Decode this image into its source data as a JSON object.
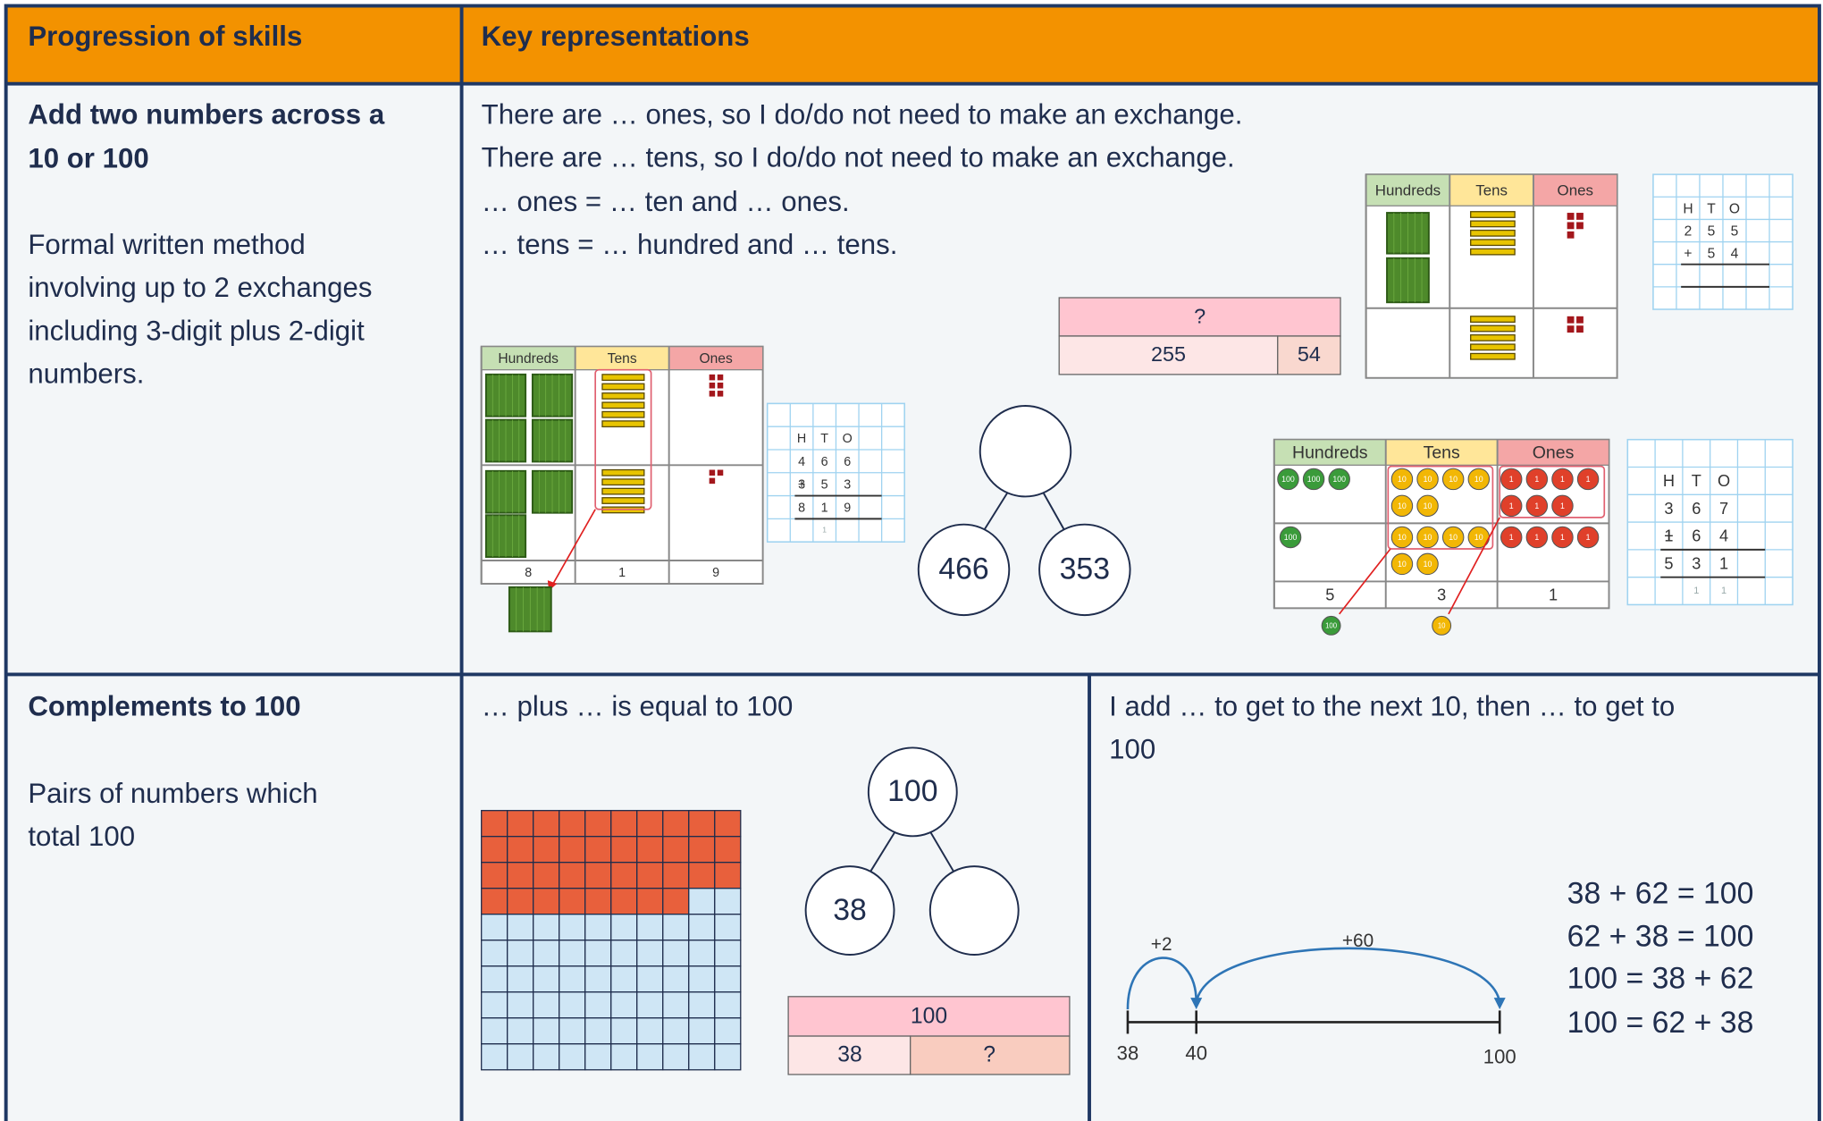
{
  "header": {
    "skills": "Progression of skills",
    "representations": "Key representations"
  },
  "row1": {
    "skill_title": [
      "Add two numbers across a",
      "10 or 100"
    ],
    "skill_description": [
      "Formal written method",
      "involving up to 2 exchanges",
      "including 3-digit plus 2-digit",
      "numbers."
    ],
    "sentences": [
      "There are … ones, so I do/do not need to make an exchange.",
      "There are … tens, so I do/do not need to make an exchange.",
      "… ones = … ten and … ones.",
      "… tens = … hundred and … tens."
    ],
    "place_value_headers": [
      "Hundreds",
      "Tens",
      "Ones"
    ],
    "chart_a_totals": [
      "8",
      "1",
      "9"
    ],
    "column_a": {
      "heading": [
        "H",
        "T",
        "O"
      ],
      "sign": "+",
      "addend1": [
        "4",
        "6",
        "6"
      ],
      "addend2": [
        "3",
        "5",
        "3"
      ],
      "answer": [
        "8",
        "1",
        "9"
      ],
      "carry": [
        "1"
      ]
    },
    "column_b": {
      "heading": [
        "H",
        "T",
        "O"
      ],
      "sign": "+",
      "addend1": [
        "2",
        "5",
        "5"
      ],
      "addend2": [
        "5",
        "4"
      ]
    },
    "bar_model": {
      "whole": "?",
      "parts": [
        "255",
        "54"
      ]
    },
    "part_whole": {
      "parts": [
        "466",
        "353"
      ]
    },
    "chart_c_totals": [
      "5",
      "3",
      "1"
    ],
    "counters": {
      "hundred": "100",
      "ten": "10",
      "one": "1"
    },
    "column_c": {
      "heading": [
        "H",
        "T",
        "O"
      ],
      "sign": "+",
      "addend1": [
        "3",
        "6",
        "7"
      ],
      "addend2": [
        "1",
        "6",
        "4"
      ],
      "answer": [
        "5",
        "3",
        "1"
      ],
      "carry": [
        "1",
        "1"
      ]
    }
  },
  "row2": {
    "skill_title": "Complements to 100",
    "skill_description": [
      "Pairs of numbers which",
      "total 100"
    ],
    "sentence_left": "… plus … is equal to 100",
    "part_whole": {
      "whole": "100",
      "part": "38"
    },
    "bar_model": {
      "whole": "100",
      "parts": [
        "38",
        "?"
      ]
    },
    "sentence_right": [
      "I add … to get to the next 10, then … to get to",
      "100"
    ],
    "number_line": {
      "labels": [
        "38",
        "40",
        "100"
      ],
      "jumps": [
        "+2",
        "+60"
      ]
    },
    "equations": [
      "38 + 62 = 100",
      "62 + 38 = 100",
      "100 = 38 + 62",
      "100 = 62 + 38"
    ]
  }
}
